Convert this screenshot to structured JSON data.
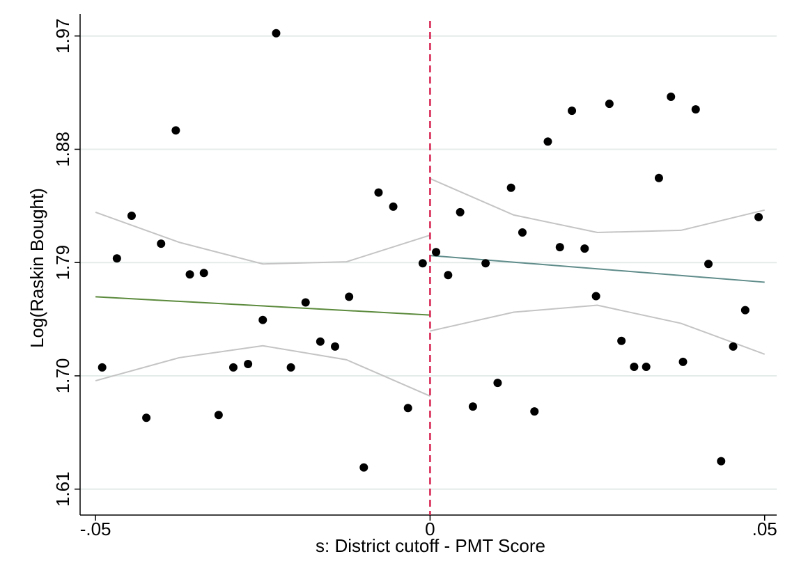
{
  "chart_data": {
    "type": "scatter",
    "xlabel": "s: District cutoff - PMT Score",
    "ylabel": "Log(Raskin Bought)",
    "xlim": [
      -0.0523,
      0.0518
    ],
    "ylim": [
      1.5894,
      1.982
    ],
    "xticks": [
      {
        "value": -0.05,
        "label": "-.05"
      },
      0,
      {
        "value": 0.05,
        "label": ".05"
      }
    ],
    "yticks": [
      {
        "value": 1.61,
        "label": "1.61"
      },
      {
        "value": 1.7,
        "label": "1.70"
      },
      1.79,
      1.88,
      1.97
    ],
    "grid": true,
    "xline": 0,
    "xline_color": "#d6204f",
    "series": [
      {
        "type": "scatter",
        "color": "#000000",
        "x": [
          -0.049,
          -0.0468,
          -0.0446,
          -0.0424,
          -0.0402,
          -0.038,
          -0.0359,
          -0.0338,
          -0.0316,
          -0.0294,
          -0.0272,
          -0.025,
          -0.023,
          -0.0208,
          -0.0186,
          -0.0164,
          -0.0142,
          -0.0121,
          -0.0099,
          -0.0077,
          -0.0055,
          -0.0033,
          -0.0011,
          0.0009,
          0.0027,
          0.0045,
          0.0064,
          0.0083,
          0.0101,
          0.0121,
          0.0138,
          0.0156,
          0.0176,
          0.0194,
          0.0212,
          0.0231,
          0.0248,
          0.0268,
          0.0286,
          0.0305,
          0.0323,
          0.0342,
          0.036,
          0.0378,
          0.0397,
          0.0416,
          0.0435,
          0.0453,
          0.0471,
          0.0491
        ],
        "values": [
          1.7067,
          1.7933,
          1.8272,
          1.6667,
          1.805,
          1.895,
          1.7806,
          1.7817,
          1.6689,
          1.7067,
          1.7094,
          1.7444,
          1.9722,
          1.7067,
          1.7583,
          1.7272,
          1.7233,
          1.7628,
          1.6272,
          1.8456,
          1.8344,
          1.6744,
          1.7894,
          1.7983,
          1.78,
          1.83,
          1.6756,
          1.7894,
          1.6944,
          1.8494,
          1.8139,
          1.6717,
          1.8861,
          1.8022,
          1.9106,
          1.8011,
          1.7633,
          1.9161,
          1.7278,
          1.7072,
          1.7072,
          1.8572,
          1.9217,
          1.7111,
          1.9117,
          1.7889,
          1.6322,
          1.7233,
          1.7522,
          1.8261
        ]
      },
      {
        "type": "line",
        "color": "#5b8a3c",
        "x": [
          -0.05,
          0
        ],
        "values": [
          1.7628,
          1.7483
        ]
      },
      {
        "type": "line",
        "color": "#5f8c8a",
        "x": [
          0,
          0.05
        ],
        "values": [
          1.7956,
          1.7744
        ]
      },
      {
        "type": "line",
        "color": "#c4c4c4",
        "x": [
          -0.05,
          -0.0375,
          -0.025,
          -0.0125,
          0
        ],
        "values": [
          1.83,
          1.8061,
          1.7889,
          1.7906,
          1.8117
        ]
      },
      {
        "type": "line",
        "color": "#c4c4c4",
        "x": [
          -0.05,
          -0.0375,
          -0.025,
          -0.0125,
          0
        ],
        "values": [
          1.6961,
          1.7144,
          1.7239,
          1.7128,
          1.6839
        ]
      },
      {
        "type": "line",
        "color": "#c4c4c4",
        "x": [
          0,
          0.0125,
          0.025,
          0.0375,
          0.05
        ],
        "values": [
          1.8567,
          1.8278,
          1.8139,
          1.8156,
          1.8317
        ]
      },
      {
        "type": "line",
        "color": "#c4c4c4",
        "x": [
          0,
          0.0125,
          0.025,
          0.0375,
          0.05
        ],
        "values": [
          1.7356,
          1.7506,
          1.7561,
          1.7417,
          1.7172
        ]
      }
    ]
  }
}
